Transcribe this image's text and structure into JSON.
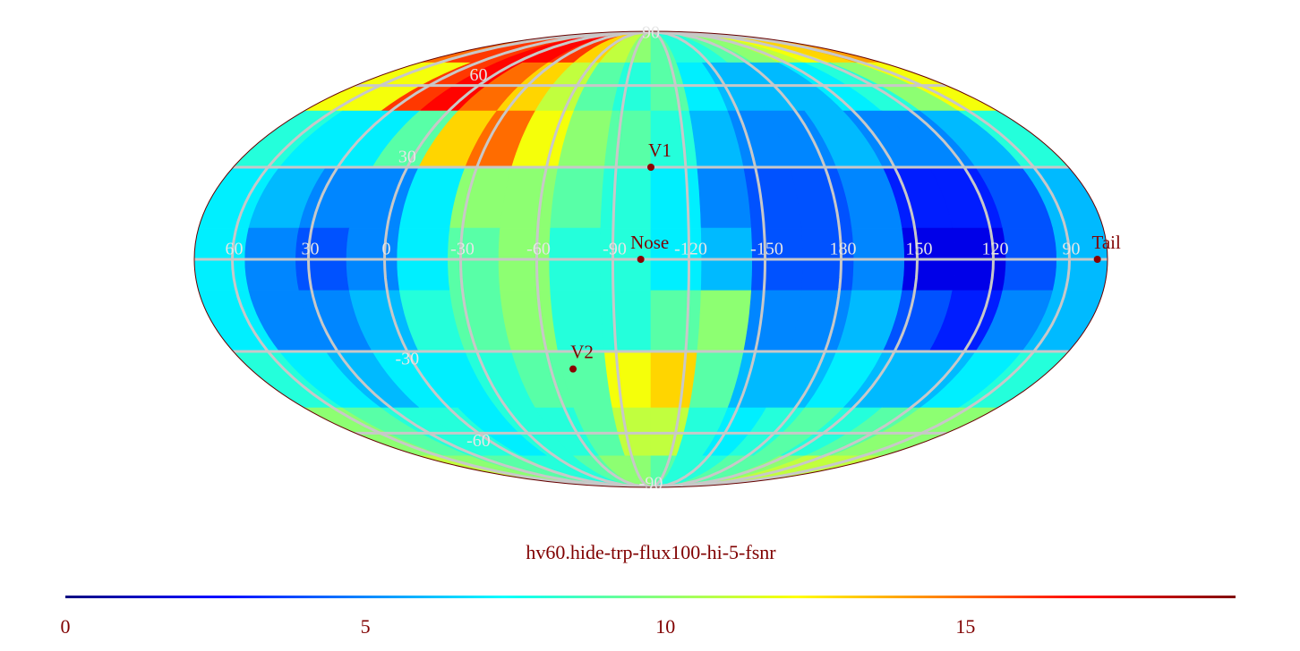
{
  "chart_data": {
    "type": "mollweide",
    "title": "hv60.hide-trp-flux100-hi-5-fsnr",
    "center_lon": -105,
    "lons": [
      65,
      45,
      25,
      5,
      -15,
      -35,
      -55,
      -75,
      -95,
      -115,
      -135,
      -155,
      -175,
      165,
      145,
      125,
      105,
      85
    ],
    "lats": [
      80,
      60,
      40,
      20,
      0,
      -20,
      -40,
      -60,
      -80
    ],
    "values": [
      [
        15,
        16,
        16,
        17,
        17,
        16,
        13,
        11,
        10,
        9,
        8,
        8,
        9,
        10,
        11,
        12,
        13,
        14
      ],
      [
        12,
        12,
        16,
        17,
        15,
        13,
        11,
        9,
        8,
        9,
        7,
        6,
        6,
        6,
        7,
        8,
        10,
        12
      ],
      [
        8,
        7,
        7,
        9,
        13,
        15,
        12,
        10,
        9,
        8,
        6,
        5,
        5,
        6,
        5,
        5,
        6,
        8
      ],
      [
        7,
        6,
        5,
        5,
        7,
        10,
        10,
        9,
        8,
        7,
        5,
        4,
        4,
        5,
        3,
        3,
        4,
        6
      ],
      [
        7,
        5,
        4,
        5,
        7,
        9,
        10,
        8,
        8,
        7,
        6,
        4,
        4,
        5,
        2,
        2,
        4,
        6
      ],
      [
        7,
        5,
        5,
        6,
        8,
        9,
        10,
        8,
        8,
        9,
        10,
        5,
        5,
        6,
        4,
        3,
        5,
        6
      ],
      [
        8,
        7,
        6,
        7,
        7,
        8,
        9,
        9,
        12,
        13,
        9,
        6,
        6,
        7,
        6,
        6,
        7,
        8
      ],
      [
        10,
        9,
        8,
        8,
        7,
        8,
        8,
        9,
        11,
        11,
        8,
        7,
        8,
        9,
        8,
        9,
        10,
        10
      ],
      [
        11,
        10,
        9,
        9,
        8,
        8,
        9,
        10,
        10,
        9,
        8,
        8,
        9,
        9,
        10,
        11,
        11,
        11
      ]
    ],
    "xticks": [
      60,
      30,
      0,
      -30,
      -60,
      -90,
      -120,
      -150,
      180,
      150,
      120,
      90
    ],
    "yticks": [
      90,
      60,
      30,
      -30,
      -60,
      -90
    ],
    "points": [
      {
        "name": "V1",
        "lon": -105,
        "lat": 30
      },
      {
        "name": "Nose",
        "lon": -101,
        "lat": 0
      },
      {
        "name": "V2",
        "lon": -70,
        "lat": -36
      },
      {
        "name": "Tail",
        "lon": 79,
        "lat": 0
      }
    ],
    "clim": [
      0,
      19.5
    ],
    "cticks": [
      0,
      5,
      10,
      15
    ],
    "colormap": "jet",
    "grid": true
  }
}
